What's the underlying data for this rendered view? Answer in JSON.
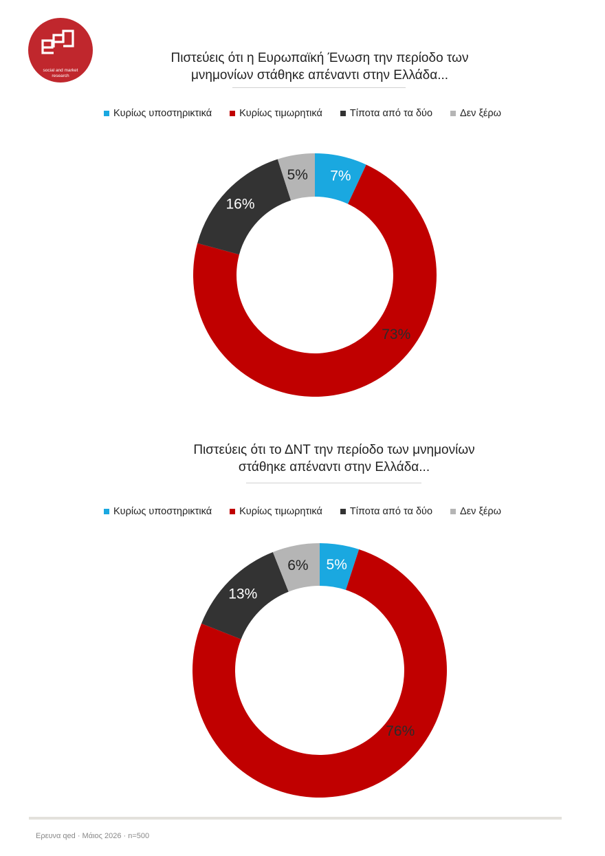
{
  "logo": {
    "icon": "qed-logo",
    "color": "#c0272d",
    "tagline_line1": "social and market",
    "tagline_line2": "research"
  },
  "colors": {
    "Κυρίως υποστηρικτικά": "#1aa8e0",
    "Κυρίως τιμωρητικά": "#c00000",
    "Τίποτα από τα δύο": "#333333",
    "Δεν ξέρω": "#b5b5b5"
  },
  "chart_data": [
    {
      "type": "pie",
      "title": "Πιστεύεις ότι η Ευρωπαϊκή Ένωση την περίοδο των μνημονίων στάθηκε απέναντι στην Ελλάδα...",
      "title_line1": "Πιστεύεις ότι η Ευρωπαϊκή Ένωση την περίοδο των",
      "title_line2": "μνημονίων στάθηκε απέναντι στην Ελλάδα...",
      "donut": true,
      "legend_position": "top",
      "categories": [
        "Κυρίως υποστηρικτικά",
        "Κυρίως τιμωρητικά",
        "Τίποτα από τα δύο",
        "Δεν ξέρω"
      ],
      "values": [
        7,
        73,
        16,
        5
      ],
      "labels": [
        "7%",
        "73%",
        "16%",
        "5%"
      ]
    },
    {
      "type": "pie",
      "title": "Πιστεύεις ότι το ΔΝΤ την περίοδο των μνημονίων στάθηκε απέναντι στην Ελλάδα...",
      "title_line1": "Πιστεύεις ότι το ΔΝΤ την περίοδο των μνημονίων",
      "title_line2": "στάθηκε απέναντι στην Ελλάδα...",
      "donut": true,
      "legend_position": "top",
      "categories": [
        "Κυρίως υποστηρικτικά",
        "Κυρίως τιμωρητικά",
        "Τίποτα από τα δύο",
        "Δεν ξέρω"
      ],
      "values": [
        5,
        76,
        13,
        6
      ],
      "labels": [
        "5%",
        "76%",
        "13%",
        "6%"
      ]
    }
  ],
  "footer": {
    "note": "Ερευνα qed · Μάιος 2026 · n=500"
  }
}
